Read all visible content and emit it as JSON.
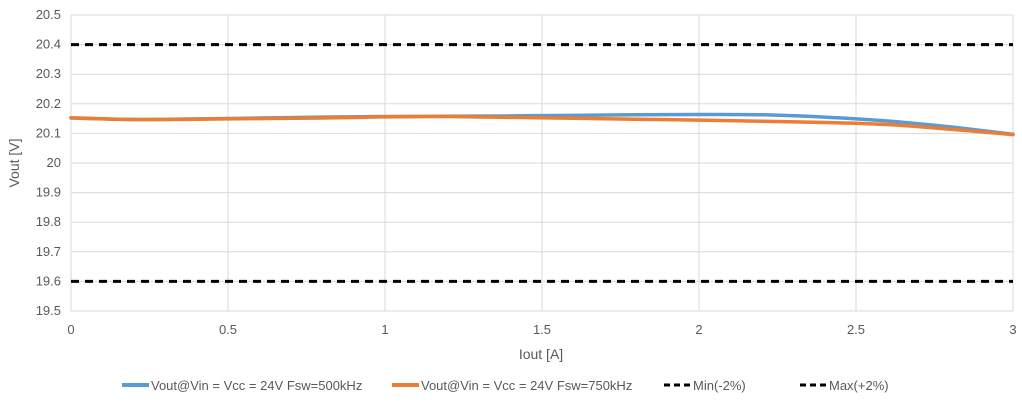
{
  "chart_data": {
    "type": "line",
    "title": "",
    "xlabel": "Iout [A]",
    "ylabel": "Vout [V]",
    "xlim": [
      0,
      3
    ],
    "ylim": [
      19.5,
      20.5
    ],
    "x_ticks": [
      "0",
      "0.5",
      "1",
      "1.5",
      "2",
      "2.5",
      "3"
    ],
    "y_ticks": [
      "19.5",
      "19.6",
      "19.7",
      "19.8",
      "19.9",
      "20",
      "20.1",
      "20.2",
      "20.3",
      "20.4",
      "20.5"
    ],
    "grid": true,
    "legend_position": "bottom",
    "series": [
      {
        "name": "Vout@Vin = Vcc = 24V Fsw=500kHz",
        "color": "#5B9BD5",
        "style": "solid",
        "x": [
          0,
          0.2,
          0.4,
          0.6,
          0.8,
          1.0,
          1.2,
          1.4,
          1.6,
          1.8,
          2.0,
          2.2,
          2.4,
          2.6,
          2.8,
          3.0
        ],
        "y": [
          20.152,
          20.147,
          20.149,
          20.152,
          20.155,
          20.157,
          20.158,
          20.159,
          20.161,
          20.163,
          20.164,
          20.163,
          20.155,
          20.142,
          20.122,
          20.097
        ]
      },
      {
        "name": "Vout@Vin = Vcc = 24V Fsw=750kHz",
        "color": "#ED7D31",
        "style": "solid",
        "x": [
          0,
          0.2,
          0.4,
          0.6,
          0.8,
          1.0,
          1.2,
          1.4,
          1.6,
          1.8,
          2.0,
          2.2,
          2.4,
          2.6,
          2.8,
          3.0
        ],
        "y": [
          20.153,
          20.147,
          20.148,
          20.15,
          20.152,
          20.156,
          20.157,
          20.154,
          20.151,
          20.148,
          20.145,
          20.141,
          20.137,
          20.13,
          20.114,
          20.096
        ]
      },
      {
        "name": "Min(-2%)",
        "color": "#000000",
        "style": "dashed",
        "x": [
          0,
          3
        ],
        "y": [
          19.6,
          19.6
        ]
      },
      {
        "name": "Max(+2%)",
        "color": "#000000",
        "style": "dashed",
        "x": [
          0,
          3
        ],
        "y": [
          20.4,
          20.4
        ]
      }
    ]
  }
}
